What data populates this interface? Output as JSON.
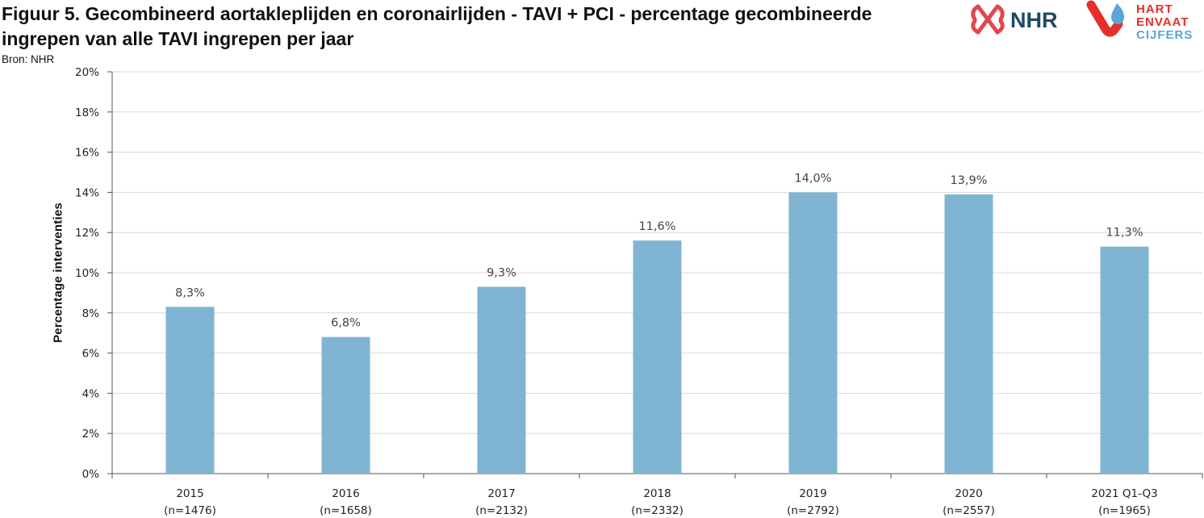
{
  "header": {
    "title": "Figuur 5. Gecombineerd aortakleplijden en coronairlijden - TAVI + PCI - percentage gecombineerde ingrepen van alle TAVI ingrepen per jaar",
    "source": "Bron: NHR"
  },
  "logos": {
    "nhr_text": "NHR",
    "hv_line1": "HART",
    "hv_line2": "ENVAAT",
    "hv_line3": "CIJFERS",
    "colors": {
      "nhr_red": "#e0474c",
      "nhr_navy": "#1d4a63",
      "hv_red": "#e4302a",
      "hv_blue": "#5aa6d6"
    }
  },
  "chart_data": {
    "type": "bar",
    "ylabel": "Percentage  interventies",
    "xlabel": "",
    "ylim": [
      0,
      20
    ],
    "yticks": [
      0,
      2,
      4,
      6,
      8,
      10,
      12,
      14,
      16,
      18,
      20
    ],
    "ytick_labels": [
      "0%",
      "2%",
      "4%",
      "6%",
      "8%",
      "10%",
      "12%",
      "14%",
      "16%",
      "18%",
      "20%"
    ],
    "grid": true,
    "bar_color": "#7fb5d3",
    "categories": [
      {
        "label": "2015",
        "n": "(n=1476)"
      },
      {
        "label": "2016",
        "n": "(n=1658)"
      },
      {
        "label": "2017",
        "n": "(n=2132)"
      },
      {
        "label": "2018",
        "n": "(n=2332)"
      },
      {
        "label": "2019",
        "n": "(n=2792)"
      },
      {
        "label": "2020",
        "n": "(n=2557)"
      },
      {
        "label": "2021 Q1-Q3",
        "n": "(n=1965)"
      }
    ],
    "values": [
      8.3,
      6.8,
      9.3,
      11.6,
      14.0,
      13.9,
      11.3
    ],
    "value_labels": [
      "8,3%",
      "6,8%",
      "9,3%",
      "11,6%",
      "14,0%",
      "13,9%",
      "11,3%"
    ]
  }
}
